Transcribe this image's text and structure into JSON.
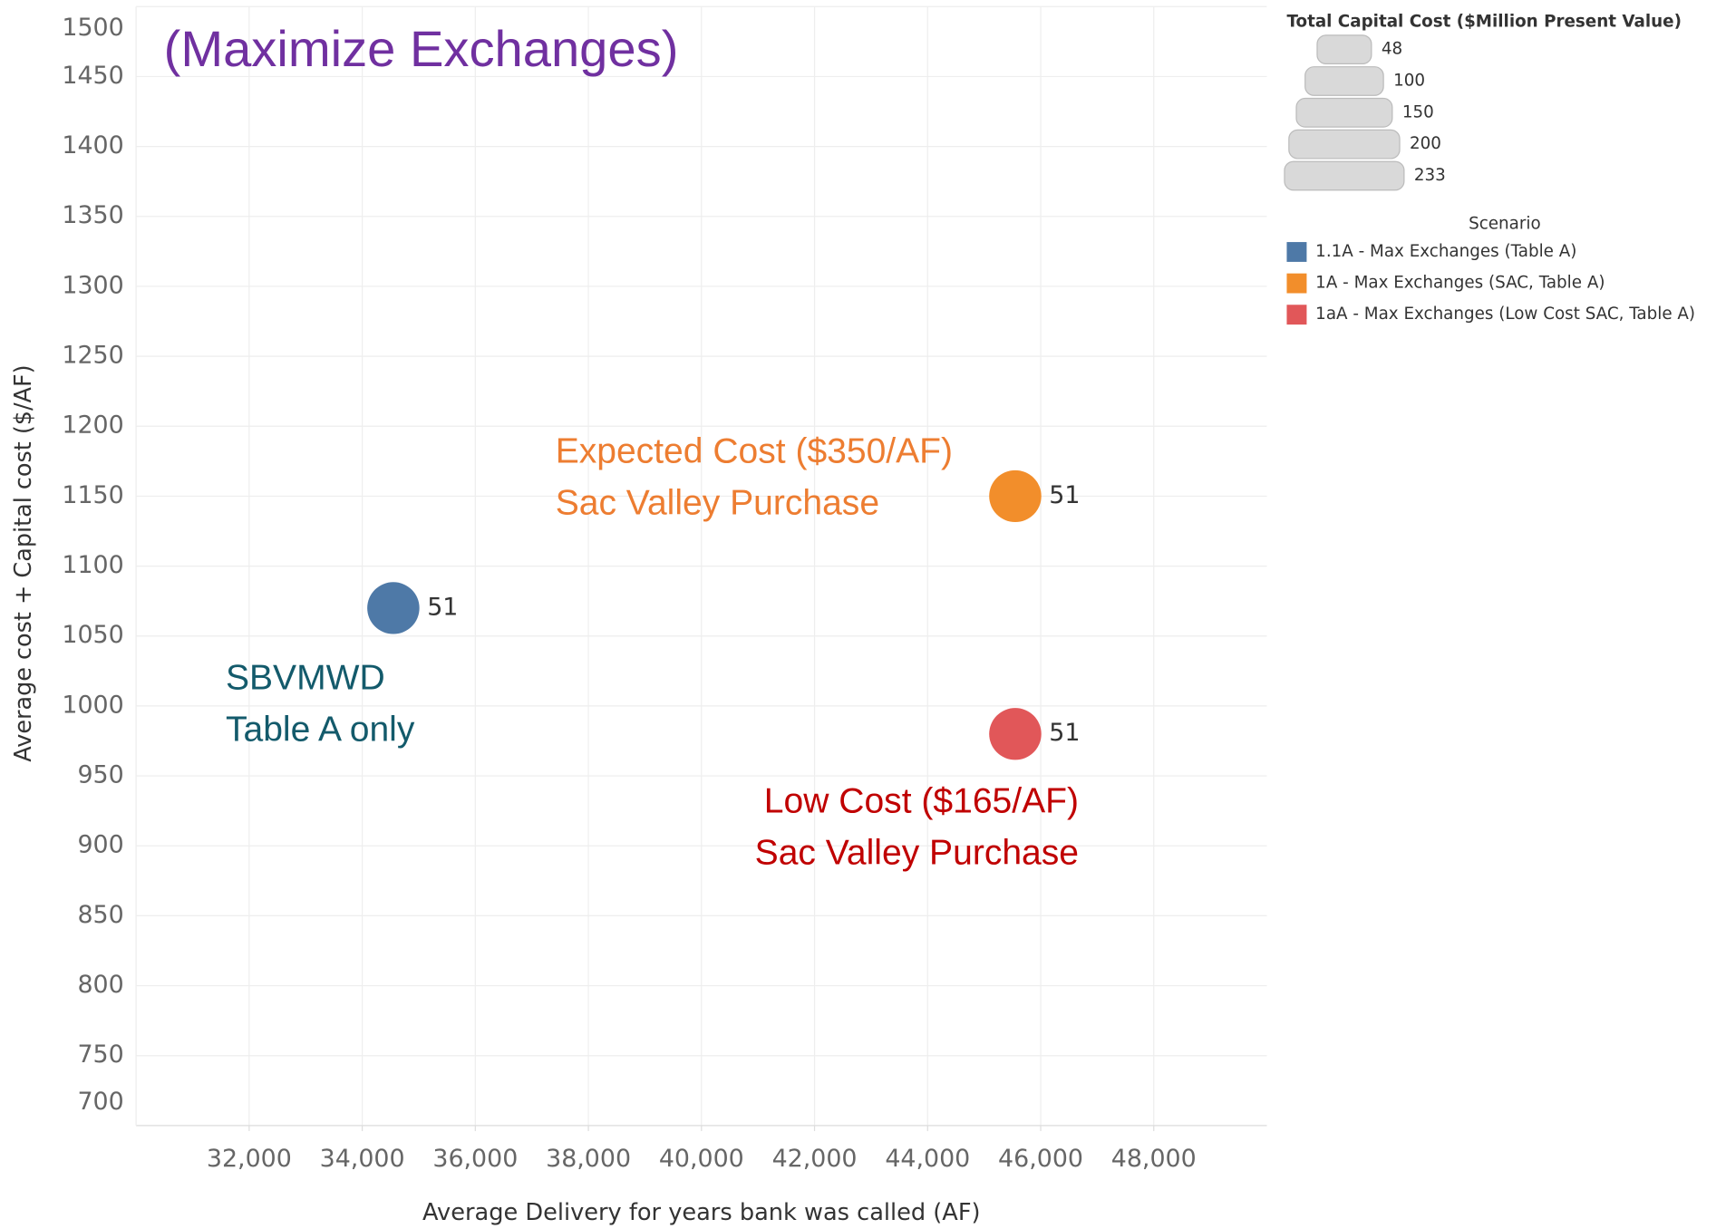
{
  "chart_data": {
    "type": "scatter",
    "title": "(Maximize Exchanges)",
    "x_label": "Average Delivery for years bank was called (AF)",
    "y_label": "Average cost + Capital cost ($/AF)",
    "xlim": [
      30000,
      50000
    ],
    "ylim": [
      700,
      1500
    ],
    "xticks": [
      {
        "value": 32000,
        "label": "32,000"
      },
      {
        "value": 34000,
        "label": "34,000"
      },
      {
        "value": 36000,
        "label": "36,000"
      },
      {
        "value": 38000,
        "label": "38,000"
      },
      {
        "value": 40000,
        "label": "40,000"
      },
      {
        "value": 42000,
        "label": "42,000"
      },
      {
        "value": 44000,
        "label": "44,000"
      },
      {
        "value": 46000,
        "label": "46,000"
      },
      {
        "value": 48000,
        "label": "48,000"
      }
    ],
    "yticks": [
      700,
      750,
      800,
      850,
      900,
      950,
      1000,
      1050,
      1100,
      1150,
      1200,
      1250,
      1300,
      1350,
      1400,
      1450,
      1500
    ],
    "grid": true,
    "size_legend": {
      "title": "Total Capital Cost ($Million Present Value)",
      "values": [
        48,
        100,
        150,
        200,
        233
      ]
    },
    "legend_title": "Scenario",
    "series": [
      {
        "name": "1.1A - Max Exchanges (Table A)",
        "color": "#4e79a7",
        "x": [
          34550
        ],
        "values": [
          1070
        ],
        "sizes": [
          51
        ]
      },
      {
        "name": "1A - Max Exchanges (SAC, Table A)",
        "color": "#f28e2b",
        "x": [
          45550
        ],
        "values": [
          1150
        ],
        "sizes": [
          51
        ]
      },
      {
        "name": "1aA - Max Exchanges (Low Cost SAC, Table A)",
        "color": "#e15759",
        "x": [
          45550
        ],
        "values": [
          980
        ],
        "sizes": [
          51
        ]
      }
    ],
    "annotations": [
      {
        "lines": [
          "Expected Cost ($350/AF)",
          "Sac Valley Purchase"
        ],
        "color": "#ed7d31"
      },
      {
        "lines": [
          "SBVMWD",
          "Table A only"
        ],
        "color": "#135a6b"
      },
      {
        "lines": [
          "Low Cost ($165/AF)",
          "Sac Valley Purchase"
        ],
        "color": "#c00000"
      }
    ]
  }
}
